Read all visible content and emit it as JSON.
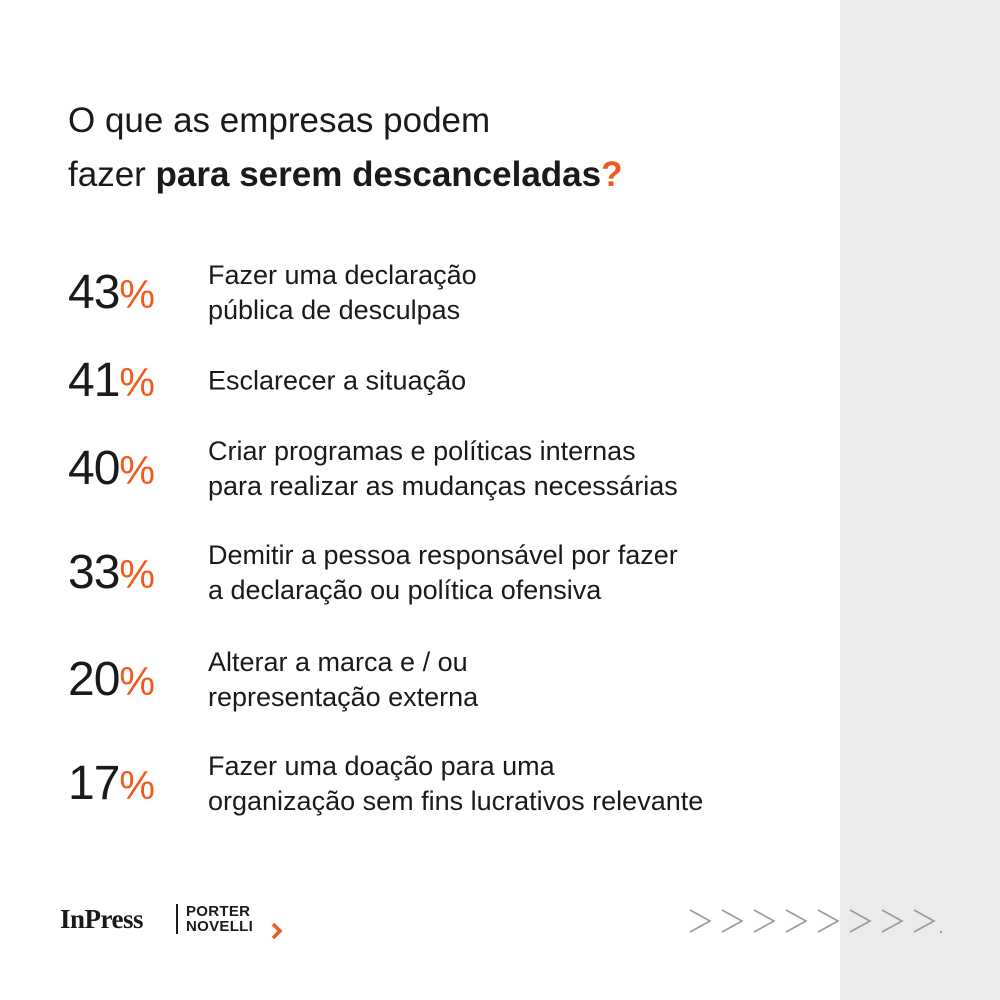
{
  "title": {
    "line1": "O que as empresas podem",
    "line2_normal": "fazer ",
    "line2_bold": "para serem descanceladas",
    "qmark": "?"
  },
  "stats": [
    {
      "number": "43",
      "sign": "%",
      "line1": "Fazer uma declaração",
      "line2": "pública de desculpas"
    },
    {
      "number": "41",
      "sign": "%",
      "line1": "Esclarecer a situação",
      "line2": ""
    },
    {
      "number": "40",
      "sign": "%",
      "line1": "Criar programas e políticas internas",
      "line2": "para realizar as mudanças necessárias"
    },
    {
      "number": "33",
      "sign": "%",
      "line1": "Demitir a pessoa responsável por fazer",
      "line2": "a declaração ou política ofensiva"
    },
    {
      "number": "20",
      "sign": "%",
      "line1": "Alterar a marca e / ou",
      "line2": "representação externa"
    },
    {
      "number": "17",
      "sign": "%",
      "line1": "Fazer uma doação para uma",
      "line2": "organização sem fins lucrativos relevante"
    }
  ],
  "logos": {
    "inpress": "InPress",
    "porter_line1": "PORTER",
    "porter_line2": "NOVELLI"
  },
  "colors": {
    "accent": "#f05a1a",
    "text": "#1a1a1a",
    "side_panel": "#ebebeb"
  },
  "icons": {
    "next_arrows": "chevron-right-row-icon",
    "porter_chevron": "chevron-right-icon"
  }
}
